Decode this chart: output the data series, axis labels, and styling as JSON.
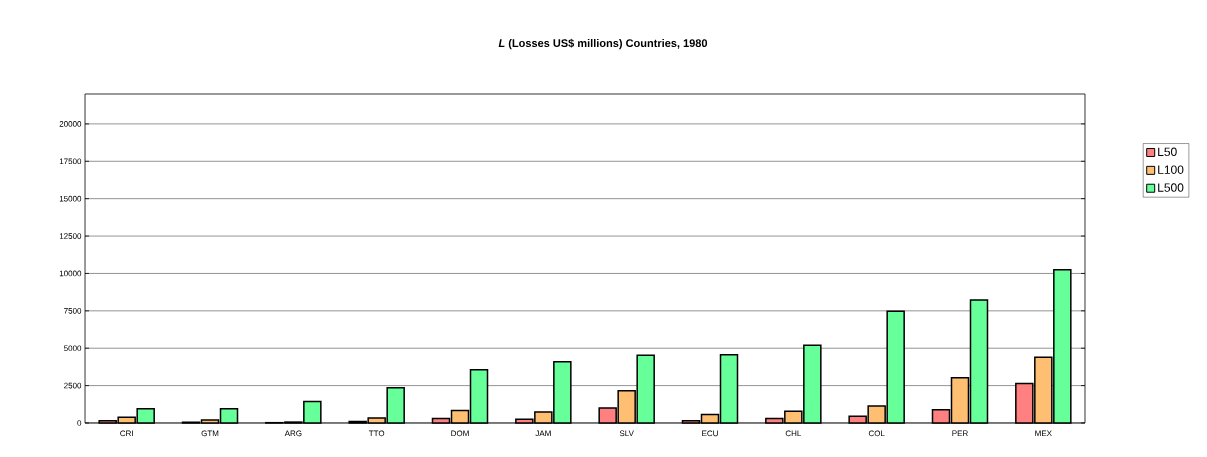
{
  "chart_data": {
    "type": "bar",
    "title": "*L*  (Losses US$ millions) Countries, 1980",
    "categories": [
      "CRI",
      "GTM",
      "ARG",
      "TTO",
      "DOM",
      "JAM",
      "SLV",
      "ECU",
      "CHL",
      "COL",
      "PER",
      "MEX"
    ],
    "series": [
      {
        "name": "L50",
        "color": "#ff8080",
        "values": [
          150,
          50,
          20,
          100,
          300,
          250,
          1000,
          150,
          300,
          450,
          880,
          2640
        ]
      },
      {
        "name": "L100",
        "color": "#ffbf73",
        "values": [
          390,
          200,
          60,
          340,
          830,
          740,
          2160,
          560,
          790,
          1130,
          3020,
          4390
        ]
      },
      {
        "name": "L500",
        "color": "#66ff99",
        "values": [
          950,
          950,
          1440,
          2360,
          3560,
          4100,
          4530,
          4570,
          5200,
          7480,
          8220,
          10250
        ]
      }
    ],
    "ylim": [
      0,
      22000
    ],
    "yticks": [
      0,
      2500,
      5000,
      7500,
      10000,
      12500,
      15000,
      17500,
      20000
    ],
    "grid": "y",
    "legend": "right"
  }
}
